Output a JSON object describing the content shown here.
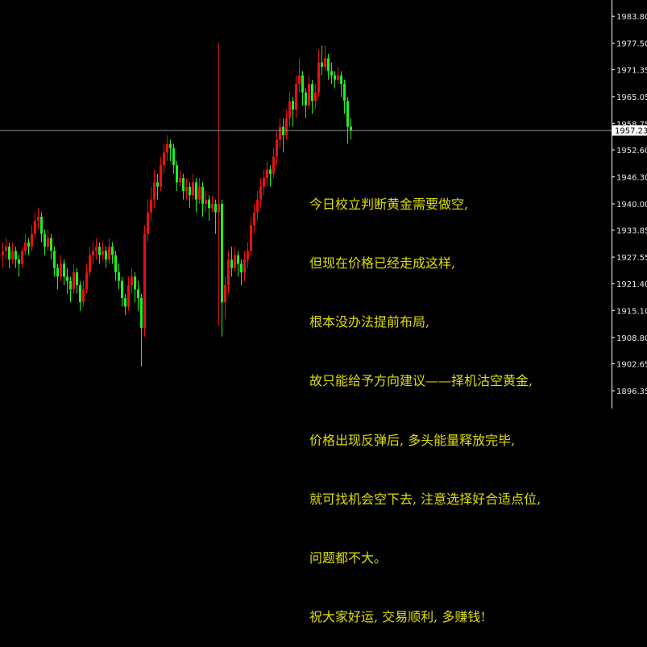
{
  "chart_data": {
    "type": "candlestick",
    "ylim": [
      1892.2,
      1987.6
    ],
    "y_ticks": [
      "1983.80",
      "1977.50",
      "1971.35",
      "1965.05",
      "1958.75",
      "1952.60",
      "1946.30",
      "1940.00",
      "1933.85",
      "1927.55",
      "1921.40",
      "1915.10",
      "1908.80",
      "1902.65",
      "1896.35"
    ],
    "bid_price": "1957.23",
    "colors": {
      "background": "#000000",
      "up": "#e81010",
      "down": "#22ee22",
      "axis": "#ffffff",
      "bid_line": "#8c9aa6",
      "vertical_line": "#d01818",
      "note_text": "#dede00"
    },
    "vertical_line_candle_index": 67,
    "candles": [
      [
        1928,
        1931,
        1925,
        1929
      ],
      [
        1929,
        1932,
        1927,
        1930
      ],
      [
        1930,
        1931,
        1925,
        1927
      ],
      [
        1927,
        1931,
        1926,
        1929
      ],
      [
        1929,
        1930,
        1925,
        1927
      ],
      [
        1927,
        1928,
        1923,
        1926
      ],
      [
        1926,
        1930,
        1925,
        1929
      ],
      [
        1929,
        1933,
        1928,
        1931
      ],
      [
        1931,
        1932,
        1928,
        1930
      ],
      [
        1930,
        1935,
        1929,
        1933
      ],
      [
        1933,
        1938,
        1932,
        1936
      ],
      [
        1936,
        1939,
        1934,
        1937
      ],
      [
        1937,
        1938,
        1931,
        1933
      ],
      [
        1933,
        1934,
        1928,
        1930
      ],
      [
        1930,
        1934,
        1929,
        1932
      ],
      [
        1932,
        1933,
        1927,
        1929
      ],
      [
        1929,
        1930,
        1923,
        1925
      ],
      [
        1925,
        1926,
        1920,
        1923
      ],
      [
        1923,
        1928,
        1922,
        1926
      ],
      [
        1926,
        1927,
        1921,
        1923
      ],
      [
        1923,
        1925,
        1919,
        1922
      ],
      [
        1922,
        1923,
        1917,
        1920
      ],
      [
        1920,
        1926,
        1919,
        1924
      ],
      [
        1924,
        1925,
        1919,
        1921
      ],
      [
        1921,
        1922,
        1915,
        1917
      ],
      [
        1917,
        1922,
        1916,
        1920
      ],
      [
        1920,
        1926,
        1919,
        1924
      ],
      [
        1924,
        1930,
        1923,
        1928
      ],
      [
        1928,
        1931,
        1926,
        1929
      ],
      [
        1929,
        1932,
        1927,
        1930
      ],
      [
        1930,
        1931,
        1926,
        1928
      ],
      [
        1928,
        1931,
        1927,
        1929
      ],
      [
        1929,
        1930,
        1925,
        1927
      ],
      [
        1927,
        1932,
        1926,
        1930
      ],
      [
        1930,
        1931,
        1926,
        1928
      ],
      [
        1928,
        1929,
        1922,
        1924
      ],
      [
        1924,
        1926,
        1920,
        1922
      ],
      [
        1922,
        1923,
        1916,
        1918
      ],
      [
        1918,
        1919,
        1914,
        1916
      ],
      [
        1916,
        1923,
        1915,
        1921
      ],
      [
        1921,
        1925,
        1919,
        1923
      ],
      [
        1923,
        1924,
        1917,
        1920
      ],
      [
        1920,
        1922,
        1915,
        1918
      ],
      [
        1918,
        1919,
        1902,
        1911
      ],
      [
        1911,
        1935,
        1909,
        1933
      ],
      [
        1933,
        1941,
        1931,
        1938
      ],
      [
        1938,
        1944,
        1936,
        1941
      ],
      [
        1941,
        1948,
        1939,
        1945
      ],
      [
        1945,
        1947,
        1941,
        1944
      ],
      [
        1944,
        1951,
        1943,
        1949
      ],
      [
        1949,
        1954,
        1947,
        1952
      ],
      [
        1952,
        1956,
        1950,
        1954
      ],
      [
        1954,
        1955,
        1950,
        1953
      ],
      [
        1953,
        1954,
        1947,
        1949
      ],
      [
        1949,
        1950,
        1943,
        1945
      ],
      [
        1945,
        1948,
        1944,
        1946
      ],
      [
        1946,
        1947,
        1941,
        1943
      ],
      [
        1943,
        1946,
        1941,
        1944
      ],
      [
        1944,
        1945,
        1939,
        1942
      ],
      [
        1942,
        1947,
        1941,
        1945
      ],
      [
        1945,
        1946,
        1938,
        1941
      ],
      [
        1941,
        1946,
        1940,
        1944
      ],
      [
        1944,
        1945,
        1937,
        1940
      ],
      [
        1940,
        1943,
        1938,
        1941
      ],
      [
        1941,
        1942,
        1936,
        1939
      ],
      [
        1939,
        1942,
        1938,
        1940
      ],
      [
        1940,
        1941,
        1933,
        1938
      ],
      [
        1938,
        1942,
        1937,
        1940
      ],
      [
        1940,
        1941,
        1909,
        1917
      ],
      [
        1917,
        1923,
        1913,
        1921
      ],
      [
        1921,
        1929,
        1919,
        1927
      ],
      [
        1927,
        1930,
        1923,
        1925
      ],
      [
        1925,
        1930,
        1924,
        1928
      ],
      [
        1928,
        1929,
        1923,
        1926
      ],
      [
        1926,
        1927,
        1921,
        1924
      ],
      [
        1924,
        1929,
        1922,
        1927
      ],
      [
        1927,
        1931,
        1925,
        1929
      ],
      [
        1929,
        1937,
        1928,
        1935
      ],
      [
        1935,
        1940,
        1933,
        1938
      ],
      [
        1938,
        1943,
        1936,
        1941
      ],
      [
        1941,
        1946,
        1939,
        1944
      ],
      [
        1944,
        1948,
        1942,
        1946
      ],
      [
        1946,
        1950,
        1944,
        1948
      ],
      [
        1948,
        1949,
        1944,
        1947
      ],
      [
        1947,
        1953,
        1946,
        1951
      ],
      [
        1951,
        1957,
        1949,
        1955
      ],
      [
        1955,
        1960,
        1953,
        1958
      ],
      [
        1958,
        1960,
        1952,
        1956
      ],
      [
        1956,
        1962,
        1955,
        1960
      ],
      [
        1960,
        1966,
        1958,
        1964
      ],
      [
        1964,
        1965,
        1958,
        1962
      ],
      [
        1962,
        1970,
        1960,
        1968
      ],
      [
        1968,
        1974,
        1966,
        1970
      ],
      [
        1970,
        1971,
        1963,
        1966
      ],
      [
        1966,
        1967,
        1960,
        1963
      ],
      [
        1963,
        1970,
        1962,
        1968
      ],
      [
        1968,
        1969,
        1961,
        1964
      ],
      [
        1964,
        1968,
        1962,
        1966
      ],
      [
        1966,
        1976,
        1965,
        1973
      ],
      [
        1973,
        1977,
        1970,
        1972
      ],
      [
        1972,
        1977,
        1971,
        1974
      ],
      [
        1974,
        1975,
        1969,
        1971
      ],
      [
        1971,
        1973,
        1968,
        1970
      ],
      [
        1970,
        1971,
        1967,
        1969
      ],
      [
        1969,
        1972,
        1968,
        1970
      ],
      [
        1970,
        1971,
        1965,
        1968
      ],
      [
        1968,
        1969,
        1961,
        1964
      ],
      [
        1964,
        1965,
        1954,
        1958
      ],
      [
        1958,
        1960,
        1955,
        1957.23
      ]
    ],
    "annotation_lines": [
      "今日校立判断黄金需要做空,",
      "但现在价格已经走成这样,",
      "根本没办法提前布局,",
      "故只能给予方向建议——择机沽空黄金,",
      "价格出现反弹后, 多头能量释放完毕,",
      "就可找机会空下去, 注意选择好合适点位,",
      "问题都不大。",
      "祝大家好运, 交易顺利, 多赚钱!"
    ]
  }
}
